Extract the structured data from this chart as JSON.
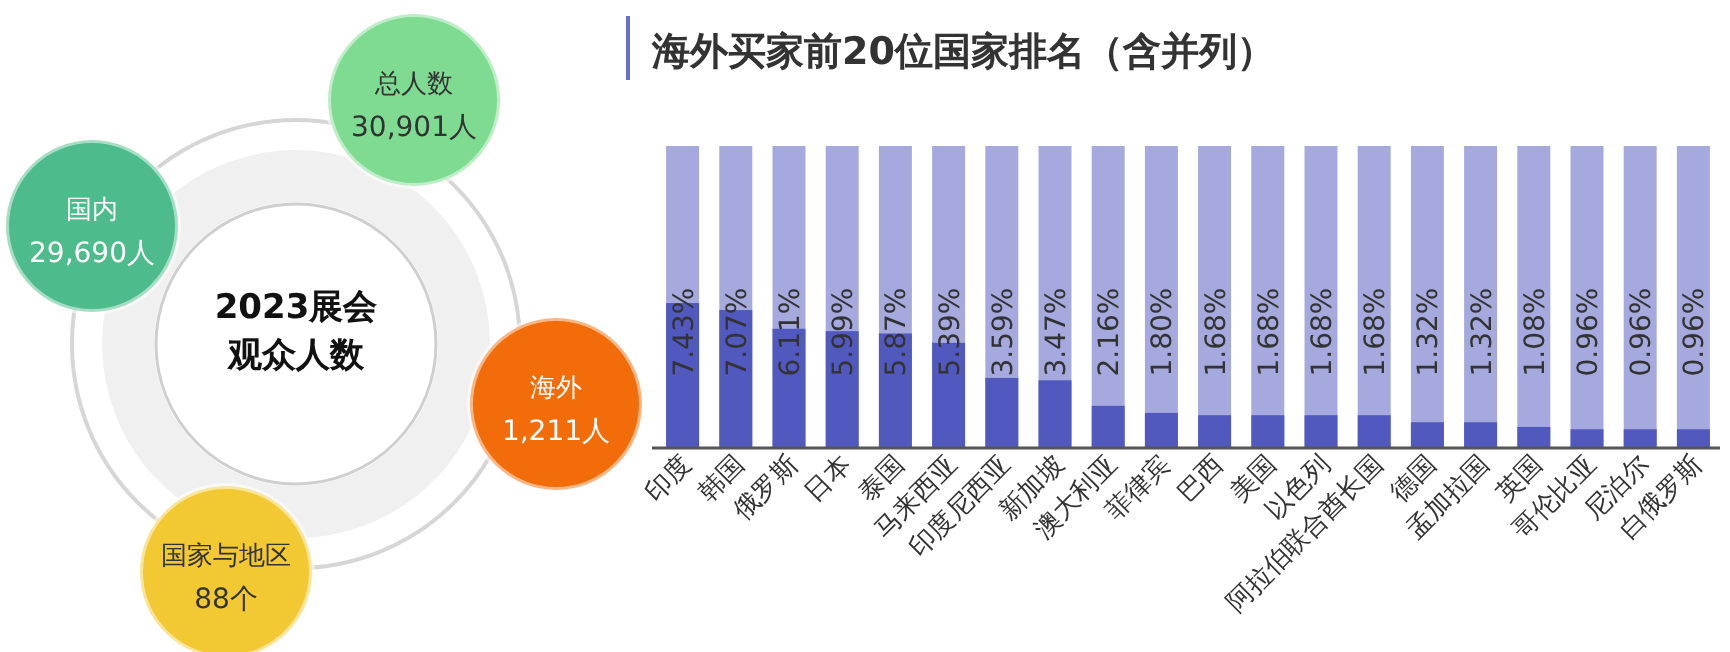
{
  "chart_data": [
    {
      "type": "other",
      "title": "2023展会",
      "subtitle": "观众人数",
      "categories": [
        "总人数",
        "国内",
        "海外",
        "国家与地区"
      ],
      "value_labels": [
        "30,901人",
        "29,690人",
        "1,211人",
        "88个"
      ],
      "colors": [
        "#7edb91",
        "#4dbb8b",
        "#f26c0a",
        "#f2c933"
      ]
    },
    {
      "type": "bar",
      "title": "海外买家前20位国家排名（含并列）",
      "categories": [
        "印度",
        "韩国",
        "俄罗斯",
        "日本",
        "泰国",
        "马来西亚",
        "印度尼西亚",
        "新加坡",
        "澳大利亚",
        "菲律宾",
        "巴西",
        "美国",
        "以色列",
        "阿拉伯联合酋长国",
        "德国",
        "孟加拉国",
        "英国",
        "哥伦比亚",
        "尼泊尔",
        "白俄罗斯"
      ],
      "values": [
        7.43,
        7.07,
        6.11,
        5.99,
        5.87,
        5.39,
        3.59,
        3.47,
        2.16,
        1.8,
        1.68,
        1.68,
        1.68,
        1.68,
        1.32,
        1.32,
        1.08,
        0.96,
        0.96,
        0.96
      ],
      "value_labels": [
        "7.43%",
        "7.07%",
        "6.11%",
        "5.99%",
        "5.87%",
        "5.39%",
        "3.59%",
        "3.47%",
        "2.16%",
        "1.80%",
        "1.68%",
        "1.68%",
        "1.68%",
        "1.68%",
        "1.32%",
        "1.32%",
        "1.08%",
        "0.96%",
        "0.96%",
        "0.96%"
      ],
      "color": "#5159bf"
    }
  ]
}
